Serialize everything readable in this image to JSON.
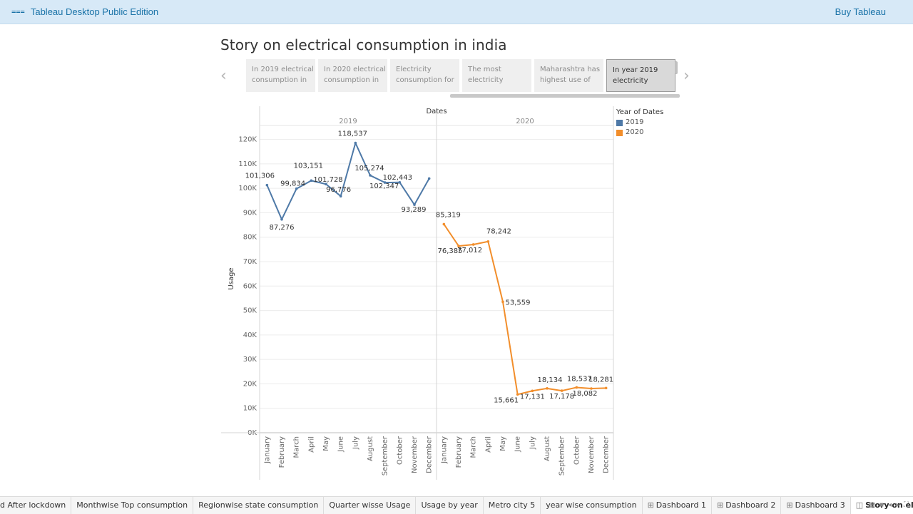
{
  "topbar": {
    "brand_icon": "tableau-public-icon",
    "brand_label": "Tableau Desktop Public Edition",
    "buy_label": "Buy Tableau"
  },
  "story": {
    "title": "Story on electrical consumption in india",
    "points": [
      {
        "text": "In 2019 electrical consumption in"
      },
      {
        "text": "In 2020 electrical consumption in"
      },
      {
        "text": "Electricity consumption for"
      },
      {
        "text": "The most electricity"
      },
      {
        "text": "Maharashtra  has highest use of"
      },
      {
        "text": "In year 2019 electricity"
      }
    ],
    "active_index": 5,
    "prev_icon": "chevron-left-icon",
    "next_icon": "chevron-right-icon"
  },
  "legend": {
    "title": "Year of Dates",
    "items": [
      {
        "label": "2019",
        "color": "#4e79a7"
      },
      {
        "label": "2020",
        "color": "#f28e2b"
      }
    ]
  },
  "chart_data": {
    "type": "line",
    "title": "",
    "column_header": "Dates",
    "ylabel": "Usage",
    "xlabel": "",
    "ylim": [
      0,
      126000
    ],
    "yticks": [
      "0K",
      "10K",
      "20K",
      "30K",
      "40K",
      "50K",
      "60K",
      "70K",
      "80K",
      "90K",
      "100K",
      "110K",
      "120K"
    ],
    "panels": [
      "2019",
      "2020"
    ],
    "categories": [
      "January",
      "February",
      "March",
      "April",
      "May",
      "June",
      "July",
      "August",
      "September",
      "October",
      "November",
      "December"
    ],
    "series": [
      {
        "name": "2019",
        "color": "#4e79a7",
        "values": [
          101306,
          87276,
          99834,
          103151,
          101728,
          96776,
          118537,
          105274,
          102347,
          102443,
          93289,
          104000
        ],
        "labels": [
          "101,306",
          "87,276",
          "99,834",
          "103,151",
          "101,728",
          "96,776",
          "118,537",
          "105,274",
          "102,347",
          "102,443",
          "93,289",
          ""
        ]
      },
      {
        "name": "2020",
        "color": "#f28e2b",
        "values": [
          85319,
          76385,
          77012,
          78242,
          53559,
          15661,
          17131,
          18134,
          17178,
          18537,
          18082,
          18281
        ],
        "labels": [
          "85,319",
          "76,385",
          "77,012",
          "78,242",
          "53,559",
          "15,661",
          "17,131",
          "18,134",
          "17,178",
          "18,537",
          "18,082",
          "18,281"
        ]
      }
    ],
    "grid": true,
    "legend_position": "right"
  },
  "sheet_tabs": [
    {
      "label": "d After lockdown",
      "icon": ""
    },
    {
      "label": "Monthwise Top consumption",
      "icon": ""
    },
    {
      "label": "Regionwise state consumption",
      "icon": ""
    },
    {
      "label": "Quarter wisse Usage",
      "icon": ""
    },
    {
      "label": "Usage by year",
      "icon": ""
    },
    {
      "label": "Metro city 5",
      "icon": ""
    },
    {
      "label": "year wise consumption",
      "icon": ""
    },
    {
      "label": "Dashboard 1",
      "icon": "⊞"
    },
    {
      "label": "Dashboard 2",
      "icon": "⊞"
    },
    {
      "label": "Dashboard 3",
      "icon": "⊞"
    },
    {
      "label": "Story on electrical consump...",
      "icon": "◫"
    }
  ],
  "active_tab_index": 10
}
